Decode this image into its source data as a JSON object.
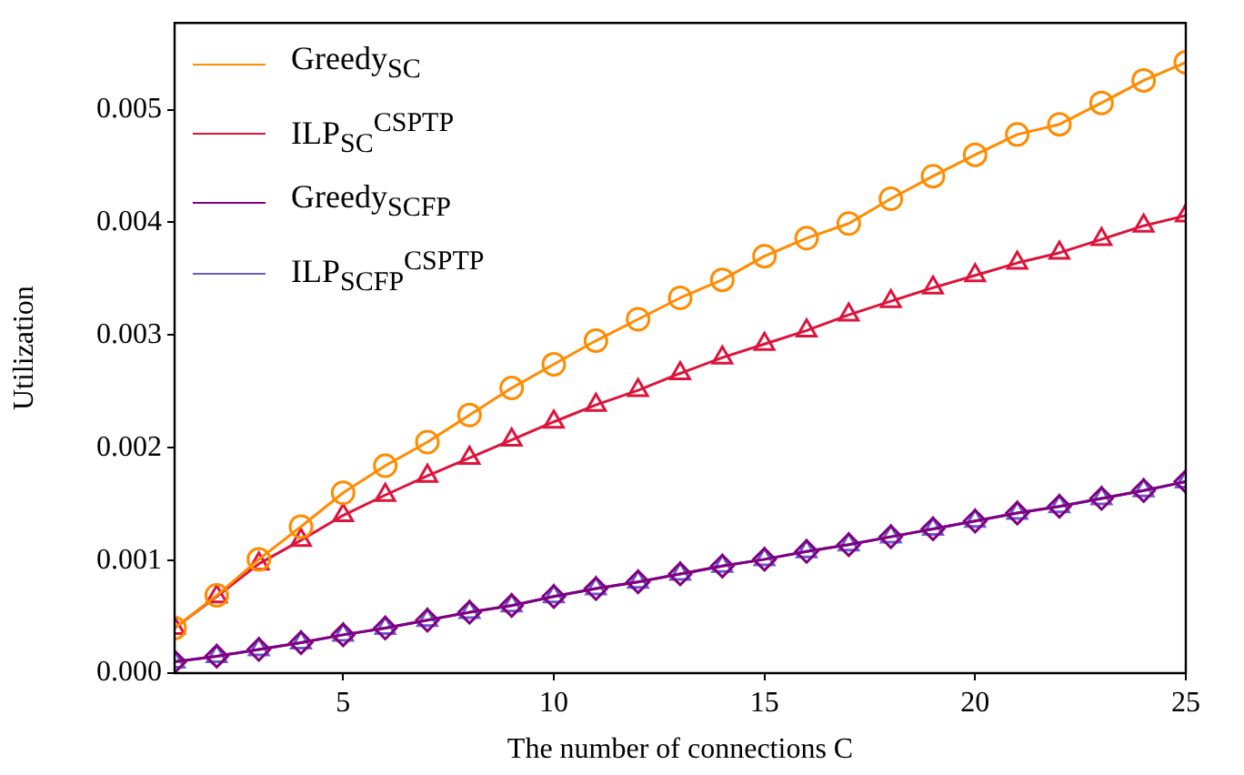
{
  "chart_data": {
    "type": "line",
    "xlabel": "The number of connections C",
    "ylabel": "Utilization",
    "x": [
      1,
      2,
      3,
      4,
      5,
      6,
      7,
      8,
      9,
      10,
      11,
      12,
      13,
      14,
      15,
      16,
      17,
      18,
      19,
      20,
      21,
      22,
      23,
      24,
      25
    ],
    "xlim": [
      1,
      25
    ],
    "xticks": [
      5,
      10,
      15,
      20,
      25
    ],
    "ylim": [
      0,
      0.00577
    ],
    "yticks": [
      {
        "value": 0,
        "label": "0.000"
      },
      {
        "value": 0.001,
        "label": "0.001"
      },
      {
        "value": 0.002,
        "label": "0.002"
      },
      {
        "value": 0.003,
        "label": "0.003"
      },
      {
        "value": 0.004,
        "label": "0.004"
      },
      {
        "value": 0.005,
        "label": "0.005"
      }
    ],
    "grid": false,
    "legend": "top left",
    "line_style": "solid",
    "series": [
      {
        "name": "Greedy$_{SC}$",
        "color": "#ff8c00",
        "marker": "circle",
        "values": [
          0.0004,
          0.00069,
          0.00101,
          0.0013,
          0.0016,
          0.00184,
          0.00205,
          0.00229,
          0.00253,
          0.00274,
          0.00295,
          0.00314,
          0.00333,
          0.00349,
          0.0037,
          0.00386,
          0.00399,
          0.00421,
          0.00441,
          0.0046,
          0.00478,
          0.00487,
          0.00506,
          0.00526,
          0.00542
        ]
      },
      {
        "name": "ILP$_{SC}$$^{CSPTP}$",
        "color": "#dc143c",
        "marker": "triangle",
        "values": [
          0.0004,
          0.00068,
          0.00097,
          0.00118,
          0.0014,
          0.00158,
          0.00175,
          0.00191,
          0.00207,
          0.00223,
          0.00238,
          0.00251,
          0.00266,
          0.0028,
          0.00292,
          0.00304,
          0.00318,
          0.0033,
          0.00342,
          0.00353,
          0.00364,
          0.00373,
          0.00385,
          0.00397,
          0.00406
        ]
      },
      {
        "name": "Greedy$_{SCFP}$",
        "color": "#800080",
        "marker": "diamond",
        "values": [
          0.0001,
          0.00015,
          0.00021,
          0.00027,
          0.00034,
          0.0004,
          0.00047,
          0.00054,
          0.0006,
          0.00068,
          0.00075,
          0.00081,
          0.00088,
          0.00095,
          0.00101,
          0.00108,
          0.00114,
          0.00121,
          0.00128,
          0.00135,
          0.00142,
          0.00148,
          0.00155,
          0.00162,
          0.0017
        ]
      },
      {
        "name": "ILP$_{SCFP}$$^{CSPTP}$",
        "color": "#6a5acd",
        "marker": "triangle",
        "values": [
          0.0001,
          0.00015,
          0.00021,
          0.00027,
          0.00034,
          0.0004,
          0.00047,
          0.00054,
          0.0006,
          0.00068,
          0.00075,
          0.00081,
          0.00088,
          0.00095,
          0.00101,
          0.00108,
          0.00114,
          0.00121,
          0.00128,
          0.00135,
          0.00142,
          0.00148,
          0.00155,
          0.00162,
          0.0017
        ]
      }
    ]
  }
}
